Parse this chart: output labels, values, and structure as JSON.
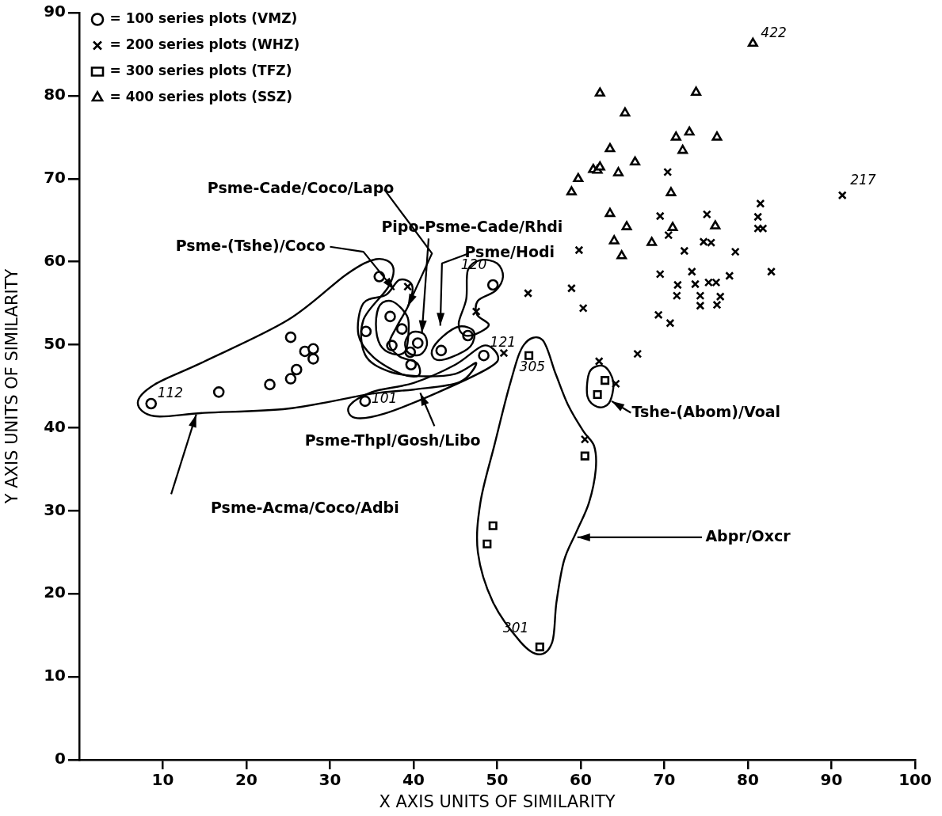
{
  "chart_data": {
    "type": "scatter",
    "xlabel": "X AXIS UNITS OF SIMILARITY",
    "ylabel": "Y AXIS UNITS OF SIMILARITY",
    "xlim": [
      0,
      100
    ],
    "xticks": [
      10,
      20,
      30,
      40,
      50,
      60,
      70,
      80,
      90,
      100
    ],
    "ylim": [
      0,
      90
    ],
    "yticks": [
      0,
      10,
      20,
      30,
      40,
      50,
      60,
      70,
      80,
      90
    ],
    "grid": false,
    "legend": "top left",
    "series": [
      {
        "name": "= 100 series plots (VMZ)",
        "color": "#000000",
        "marker": "circle",
        "x": [
          8.6,
          16.7,
          22.8,
          25.3,
          25.3,
          26,
          27,
          28,
          28,
          35.9,
          34.3,
          37.2,
          38.6,
          37.4,
          39.6,
          39.7,
          40.5,
          43.3,
          46.5,
          49.5,
          48.4,
          34.2
        ],
        "values": [
          42.9,
          44.3,
          45.2,
          45.9,
          50.9,
          47,
          49.2,
          49.5,
          48.3,
          58.2,
          51.6,
          53.4,
          51.9,
          49.9,
          49.1,
          47.6,
          50.2,
          49.3,
          51.1,
          57.2,
          48.7,
          43.2
        ]
      },
      {
        "name": "= 200 series plots (WHZ)",
        "color": "#000000",
        "marker": "cross",
        "x": [
          39.3,
          47.5,
          50.8,
          53.7,
          58.9,
          59.8,
          60.3,
          62.2,
          60.5,
          64.2,
          66.8,
          69.5,
          69.5,
          69.3,
          70.5,
          70.7,
          70.4,
          71.5,
          71.6,
          72.4,
          73.3,
          73.7,
          74.3,
          74.3,
          74.7,
          75.1,
          75.3,
          75.6,
          76.2,
          76.3,
          76.7,
          77.8,
          78.5,
          81.2,
          81.5,
          81.2,
          81.8,
          82.8,
          91.3
        ],
        "values": [
          57,
          54,
          49,
          56.2,
          56.8,
          61.4,
          54.4,
          48,
          38.6,
          45.3,
          48.9,
          65.5,
          58.5,
          53.6,
          63.2,
          52.6,
          70.8,
          55.9,
          57.2,
          61.3,
          58.8,
          57.3,
          55.9,
          54.7,
          62.4,
          65.7,
          57.5,
          62.3,
          57.5,
          54.8,
          55.8,
          58.3,
          61.2,
          65.4,
          67,
          64,
          64,
          58.8,
          68
        ]
      },
      {
        "name": "= 300 series plots (TFZ)",
        "color": "#000000",
        "marker": "square",
        "x": [
          53.8,
          62.9,
          62,
          60.5,
          49.5,
          48.8,
          55.1
        ],
        "values": [
          48.7,
          45.7,
          44,
          36.6,
          28.2,
          26,
          13.6
        ]
      },
      {
        "name": "= 400 series plots (SSZ)",
        "color": "#000000",
        "marker": "triangle",
        "x": [
          58.9,
          59.7,
          61.5,
          62,
          62.3,
          62.3,
          63.5,
          63.5,
          64,
          64.5,
          64.9,
          65.5,
          65.3,
          66.5,
          68.5,
          70.8,
          71,
          71.4,
          72.2,
          73,
          73.8,
          76.1,
          76.3,
          80.6
        ],
        "values": [
          68.4,
          70,
          71.1,
          71,
          71.4,
          80.3,
          73.6,
          65.8,
          62.5,
          70.7,
          60.7,
          64.2,
          77.9,
          72,
          62.3,
          68.3,
          64.1,
          75,
          73.4,
          75.6,
          80.4,
          64.3,
          75,
          86.3
        ]
      }
    ],
    "annotations": [
      "Psme-Acma/Coco/Adbi",
      "Psme-Thpl/Gosh/Libo",
      "Psme-(Tshe)/Coco",
      "Psme-Cade/Coco/Lapo",
      "Pipo-Psme-Cade/Rhdi",
      "Psme/Hodi",
      "Tshe-(Abom)/Voal",
      "Abpr/Oxcr",
      {
        "text": "112",
        "x": 8.6,
        "y": 42.9
      },
      {
        "text": "101",
        "x": 34.2,
        "y": 43.2
      },
      {
        "text": "120",
        "x": 49.5,
        "y": 57.2
      },
      {
        "text": "121",
        "x": 48.4,
        "y": 48.7
      },
      {
        "text": "305",
        "x": 53.8,
        "y": 48.7
      },
      {
        "text": "301",
        "x": 55.1,
        "y": 13.6
      },
      {
        "text": "217",
        "x": 91.3,
        "y": 68
      },
      {
        "text": "422",
        "x": 80.6,
        "y": 86.3
      }
    ]
  }
}
